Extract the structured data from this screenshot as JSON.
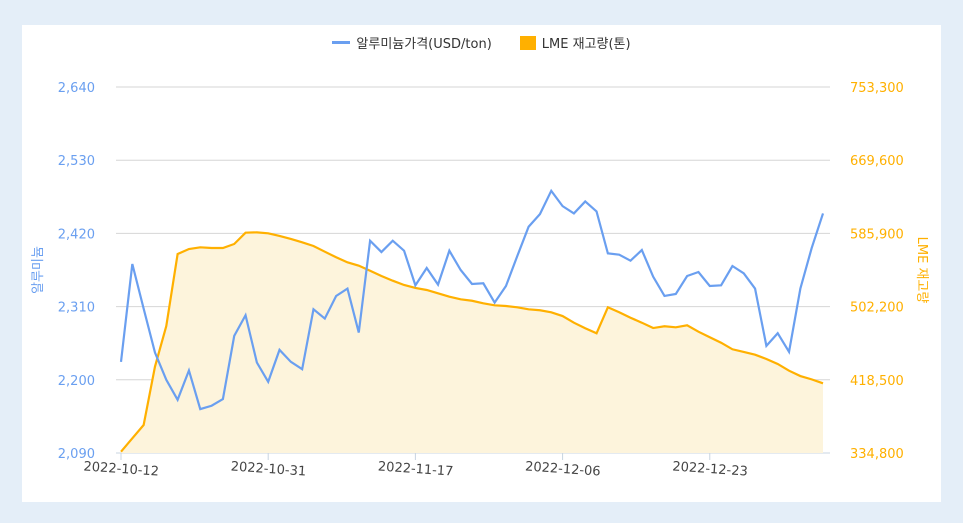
{
  "chart_data": {
    "type": "line",
    "title": "",
    "legend": {
      "placement": "top-center"
    },
    "grid": true,
    "xlabel": "",
    "x_tick_labels": [
      "2022-10-12",
      "2022-10-31",
      "2022-11-17",
      "2022-12-06",
      "2022-12-23"
    ],
    "x": [
      "2022-10-12",
      "2022-10-13",
      "2022-10-14",
      "2022-10-17",
      "2022-10-18",
      "2022-10-19",
      "2022-10-20",
      "2022-10-21",
      "2022-10-24",
      "2022-10-25",
      "2022-10-26",
      "2022-10-27",
      "2022-10-28",
      "2022-10-31",
      "2022-11-01",
      "2022-11-02",
      "2022-11-03",
      "2022-11-04",
      "2022-11-07",
      "2022-11-08",
      "2022-11-09",
      "2022-11-10",
      "2022-11-11",
      "2022-11-14",
      "2022-11-15",
      "2022-11-16",
      "2022-11-17",
      "2022-11-18",
      "2022-11-21",
      "2022-11-22",
      "2022-11-23",
      "2022-11-24",
      "2022-11-25",
      "2022-11-28",
      "2022-11-29",
      "2022-11-30",
      "2022-12-01",
      "2022-12-02",
      "2022-12-05",
      "2022-12-06",
      "2022-12-07",
      "2022-12-08",
      "2022-12-09",
      "2022-12-12",
      "2022-12-13",
      "2022-12-14",
      "2022-12-15",
      "2022-12-16",
      "2022-12-19",
      "2022-12-20",
      "2022-12-21",
      "2022-12-22",
      "2022-12-23",
      "2022-12-26",
      "2022-12-27",
      "2022-12-28",
      "2022-12-29",
      "2022-12-30",
      "2023-01-02",
      "2023-01-03",
      "2023-01-04",
      "2023-01-05",
      "2023-01-06"
    ],
    "y_left": {
      "label": "알루미늄",
      "ylim": [
        2090,
        2640
      ],
      "ticks": [
        "2,090",
        "2,200",
        "2,310",
        "2,420",
        "2,530",
        "2,640"
      ],
      "color": "#6a9ff0"
    },
    "y_right": {
      "label": "LME 재고량",
      "ylim": [
        334800,
        753300
      ],
      "ticks": [
        "334,800",
        "418,500",
        "502,200",
        "585,900",
        "669,600",
        "753,300"
      ],
      "color": "#ffb000"
    },
    "series": [
      {
        "name": "알루미늄가격(USD/ton)",
        "axis": "left",
        "type": "line",
        "color": "#6a9ff0",
        "values": [
          2227,
          2374,
          2307,
          2241,
          2200,
          2170,
          2214,
          2156,
          2161,
          2171,
          2266,
          2297,
          2226,
          2197,
          2245,
          2227,
          2216,
          2306,
          2292,
          2326,
          2337,
          2271,
          2409,
          2392,
          2409,
          2394,
          2342,
          2368,
          2343,
          2394,
          2365,
          2344,
          2345,
          2316,
          2341,
          2386,
          2430,
          2449,
          2484,
          2461,
          2450,
          2468,
          2453,
          2390,
          2388,
          2379,
          2395,
          2355,
          2326,
          2329,
          2356,
          2362,
          2341,
          2342,
          2371,
          2360,
          2337,
          2251,
          2270,
          2242,
          2337,
          2398,
          2450
        ]
      },
      {
        "name": "LME 재고량(톤)",
        "axis": "right",
        "type": "area",
        "color": "#ffb000",
        "fill": "#fdf4dc",
        "values": [
          336300,
          351600,
          366800,
          433500,
          480000,
          562300,
          568000,
          570000,
          569200,
          569200,
          573800,
          586700,
          587100,
          586000,
          583000,
          579500,
          575700,
          571500,
          565000,
          558600,
          552800,
          549000,
          543200,
          537200,
          531800,
          526900,
          523500,
          521200,
          517400,
          513500,
          510500,
          508900,
          506000,
          503700,
          502900,
          501400,
          499100,
          498000,
          495700,
          491400,
          483800,
          477400,
          471700,
          501400,
          495700,
          489500,
          483800,
          477700,
          479700,
          478500,
          480800,
          473500,
          467100,
          460900,
          453400,
          450300,
          447200,
          442300,
          436600,
          428900,
          422800,
          419000,
          414500
        ]
      }
    ]
  }
}
